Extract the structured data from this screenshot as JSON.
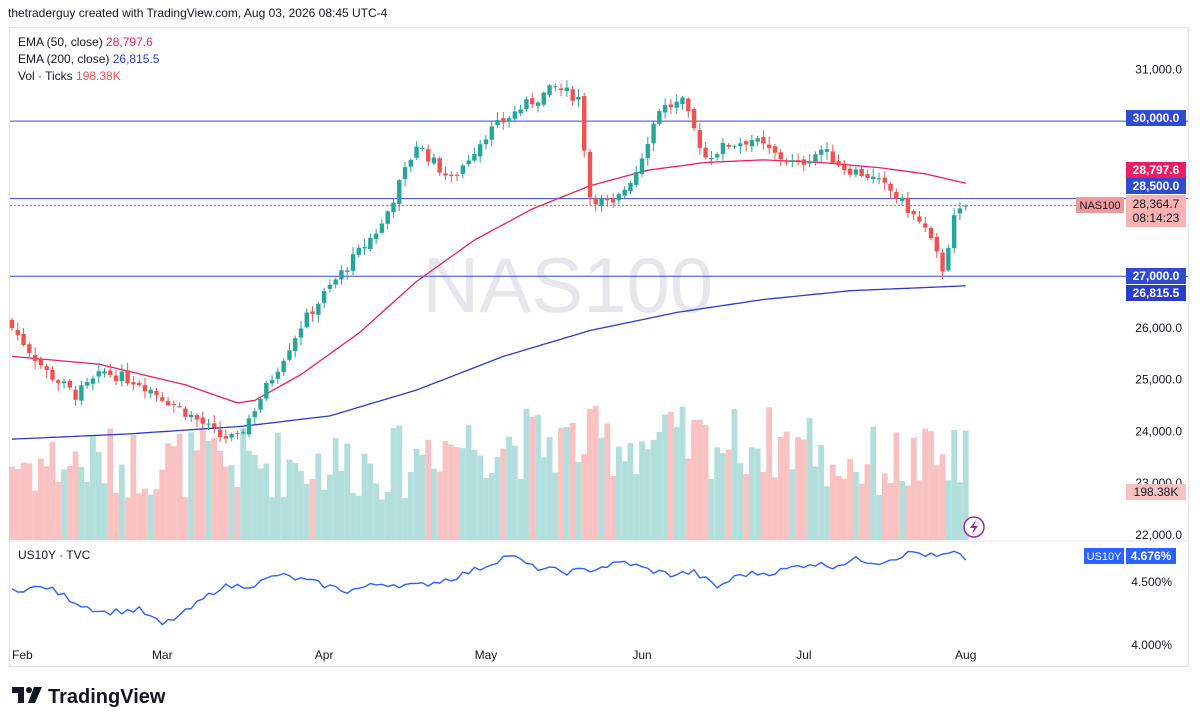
{
  "header": {
    "caption": "thetraderguy created with TradingView.com, Aug 03, 2026 08:45 UTC-4"
  },
  "indicators": [
    {
      "label": "EMA (50, close)",
      "value": "28,797.6"
    },
    {
      "label": "EMA (200, close)",
      "value": "26,815.5"
    },
    {
      "label": "Vol · Ticks",
      "value": "198.38K"
    }
  ],
  "watermark": "NAS100",
  "symbol_label": "NAS100",
  "countdown": "08:14:23",
  "price_tags": {
    "ema50": "28,797.6",
    "level_28500": "28,500.0",
    "last": "28,364.7",
    "level_30000": "30,000.0",
    "level_27000": "27,000.0",
    "ema200": "26,815.5",
    "volume": "198.38K"
  },
  "sub_pane": {
    "title": "US10Y · TVC",
    "symbol": "US10Y",
    "value": "4.676%"
  },
  "brand": "TradingView",
  "colors": {
    "up": "#26a69a",
    "down": "#ef5350",
    "ema50": "#e91e63",
    "ema200": "#2b3cc9",
    "hline": "#2f4bd0",
    "vol_up": "#b2dfdb",
    "vol_down": "#f7c2c1",
    "us10y": "#2962ff"
  },
  "chart_data": [
    {
      "type": "candlestick",
      "symbol": "NAS100",
      "x_labels": [
        "Feb",
        "Mar",
        "Apr",
        "May",
        "Jun",
        "Jul",
        "Aug"
      ],
      "y_ticks": [
        22000,
        23000,
        24000,
        25000,
        26000,
        27000,
        28000,
        29000,
        30000,
        31000
      ],
      "ylim": [
        21900,
        31800
      ],
      "hlines": [
        30000,
        28500,
        27000
      ],
      "last_price": 28364.7,
      "anchors": [
        [
          0,
          26000
        ],
        [
          6,
          25150
        ],
        [
          11,
          24700
        ],
        [
          16,
          25150
        ],
        [
          22,
          24950
        ],
        [
          29,
          24450
        ],
        [
          33,
          24150
        ],
        [
          36,
          23900
        ],
        [
          39,
          23850
        ],
        [
          42,
          24450
        ],
        [
          46,
          25250
        ],
        [
          50,
          26050
        ],
        [
          54,
          26650
        ],
        [
          58,
          27200
        ],
        [
          64,
          28000
        ],
        [
          70,
          29550
        ],
        [
          76,
          28850
        ],
        [
          82,
          29750
        ],
        [
          88,
          30250
        ],
        [
          94,
          30650
        ],
        [
          98,
          30450
        ],
        [
          100,
          28550
        ],
        [
          104,
          28350
        ],
        [
          108,
          29050
        ],
        [
          112,
          30250
        ],
        [
          116,
          30350
        ],
        [
          120,
          29300
        ],
        [
          124,
          29550
        ],
        [
          128,
          29650
        ],
        [
          132,
          29350
        ],
        [
          136,
          29150
        ],
        [
          140,
          29450
        ],
        [
          144,
          29100
        ],
        [
          148,
          28950
        ],
        [
          152,
          28650
        ],
        [
          155,
          28300
        ],
        [
          158,
          27900
        ],
        [
          161,
          27150
        ],
        [
          163,
          28100
        ],
        [
          165,
          28364.7
        ]
      ],
      "ema50": [
        [
          0,
          25450
        ],
        [
          15,
          25300
        ],
        [
          30,
          24900
        ],
        [
          39,
          24550
        ],
        [
          42,
          24600
        ],
        [
          50,
          25100
        ],
        [
          60,
          25900
        ],
        [
          70,
          26900
        ],
        [
          80,
          27700
        ],
        [
          90,
          28300
        ],
        [
          100,
          28750
        ],
        [
          110,
          29050
        ],
        [
          120,
          29200
        ],
        [
          130,
          29250
        ],
        [
          140,
          29200
        ],
        [
          150,
          29100
        ],
        [
          158,
          28980
        ],
        [
          165,
          28797.6
        ]
      ],
      "ema200": [
        [
          0,
          23850
        ],
        [
          20,
          23950
        ],
        [
          40,
          24100
        ],
        [
          55,
          24300
        ],
        [
          70,
          24800
        ],
        [
          85,
          25450
        ],
        [
          100,
          25950
        ],
        [
          115,
          26300
        ],
        [
          130,
          26550
        ],
        [
          145,
          26720
        ],
        [
          165,
          26815.5
        ]
      ],
      "volume_last": "198.38K"
    },
    {
      "type": "line",
      "symbol": "US10Y",
      "y_ticks": [
        "4.000%",
        "4.500%"
      ],
      "ylim": [
        3.88,
        4.82
      ],
      "last_value": 4.676,
      "anchors": [
        [
          0,
          4.44
        ],
        [
          6,
          4.46
        ],
        [
          12,
          4.32
        ],
        [
          16,
          4.26
        ],
        [
          22,
          4.28
        ],
        [
          26,
          4.16
        ],
        [
          30,
          4.26
        ],
        [
          36,
          4.46
        ],
        [
          42,
          4.48
        ],
        [
          46,
          4.56
        ],
        [
          52,
          4.5
        ],
        [
          58,
          4.43
        ],
        [
          64,
          4.49
        ],
        [
          70,
          4.47
        ],
        [
          76,
          4.53
        ],
        [
          82,
          4.63
        ],
        [
          86,
          4.72
        ],
        [
          90,
          4.62
        ],
        [
          96,
          4.58
        ],
        [
          100,
          4.6
        ],
        [
          106,
          4.66
        ],
        [
          110,
          4.6
        ],
        [
          114,
          4.56
        ],
        [
          118,
          4.58
        ],
        [
          122,
          4.46
        ],
        [
          126,
          4.56
        ],
        [
          132,
          4.58
        ],
        [
          138,
          4.65
        ],
        [
          142,
          4.63
        ],
        [
          146,
          4.68
        ],
        [
          150,
          4.66
        ],
        [
          156,
          4.74
        ],
        [
          160,
          4.7
        ],
        [
          163,
          4.73
        ],
        [
          165,
          4.676
        ]
      ]
    }
  ]
}
